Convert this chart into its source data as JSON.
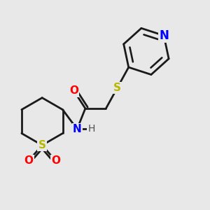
{
  "bg_color": "#e8e8e8",
  "bond_color": "#1a1a1a",
  "N_color": "#0000ff",
  "S_color": "#b8b800",
  "O_color": "#ff0000",
  "line_width": 2.0,
  "figsize": [
    3.0,
    3.0
  ],
  "dpi": 100,
  "xlim": [
    0.0,
    1.0
  ],
  "ylim": [
    0.0,
    1.0
  ]
}
